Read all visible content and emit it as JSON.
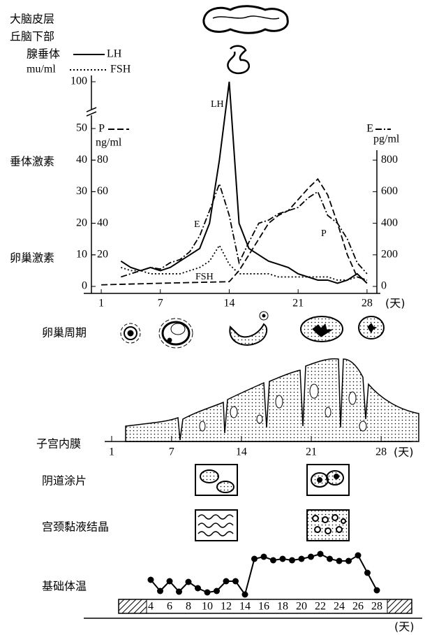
{
  "header": {
    "cortex": "大脑皮层",
    "hypothalamus": "丘脑下部",
    "pituitary": "腺垂体"
  },
  "chart_data": [
    {
      "type": "line",
      "y_axis_titles": [
        "垂体激素",
        "卵巢激素"
      ],
      "ylabel": "mu/ml",
      "y2label": "pg/ml",
      "y3label": "ng/ml",
      "x_unit": "(天)",
      "xlim": [
        0,
        29
      ],
      "xticks": [
        1,
        7,
        14,
        21,
        28
      ],
      "ylim": [
        0,
        100
      ],
      "y_break": [
        50,
        100
      ],
      "yticks": [
        0,
        10,
        20,
        30,
        40,
        50,
        100
      ],
      "y2lim": [
        0,
        1000
      ],
      "y2ticks": [
        0,
        200,
        400,
        600,
        800
      ],
      "y3lim": [
        0,
        100
      ],
      "y3ticks": [
        20,
        40,
        60,
        80
      ],
      "series": [
        {
          "name": "LH",
          "curve_label": "LH",
          "dash": "solid",
          "axis": "y",
          "color": "#000000",
          "x": [
            3,
            4,
            5,
            6,
            7,
            8,
            9,
            10,
            11,
            12,
            13,
            14,
            15,
            16,
            17,
            18,
            19,
            20,
            21,
            22,
            23,
            24,
            25,
            26,
            27,
            28
          ],
          "values": [
            8,
            6,
            5,
            6,
            5,
            6,
            8,
            10,
            12,
            20,
            40,
            100,
            20,
            12,
            10,
            8,
            7,
            6,
            4,
            3,
            2,
            2,
            1,
            2,
            4,
            1
          ]
        },
        {
          "name": "FSH",
          "curve_label": "FSH",
          "dash": "dotted",
          "axis": "y",
          "color": "#000000",
          "x": [
            3,
            4,
            5,
            6,
            7,
            8,
            9,
            10,
            11,
            12,
            13,
            14,
            15,
            16,
            17,
            18,
            19,
            20,
            21,
            22,
            23,
            24,
            25,
            26,
            27,
            28
          ],
          "values": [
            6,
            5,
            5,
            4,
            4,
            4,
            4,
            5,
            6,
            8,
            13,
            7,
            4,
            4,
            4,
            4,
            3,
            3,
            3,
            3,
            3,
            3,
            2,
            2,
            3,
            2
          ]
        },
        {
          "name": "E",
          "curve_label": "E",
          "dash": "dashdot",
          "axis": "y2",
          "color": "#000000",
          "x": [
            3,
            4,
            5,
            6,
            7,
            8,
            9,
            10,
            11,
            12,
            13,
            14,
            15,
            16,
            17,
            18,
            19,
            20,
            21,
            22,
            23,
            24,
            25,
            26,
            27,
            28
          ],
          "values": [
            60,
            80,
            100,
            120,
            110,
            150,
            170,
            220,
            320,
            480,
            650,
            450,
            150,
            280,
            400,
            420,
            460,
            480,
            500,
            560,
            600,
            450,
            400,
            300,
            150,
            80
          ]
        },
        {
          "name": "P",
          "curve_label": "P",
          "dash": "dashed",
          "axis": "y3",
          "color": "#000000",
          "x": [
            1,
            7,
            14,
            15,
            16,
            17,
            18,
            19,
            20,
            21,
            22,
            23,
            24,
            25,
            26,
            27,
            28
          ],
          "values": [
            1,
            2,
            3,
            10,
            20,
            30,
            40,
            45,
            48,
            55,
            62,
            68,
            58,
            40,
            20,
            6,
            4
          ]
        }
      ]
    },
    {
      "type": "line",
      "title": "基础体温",
      "color": "#000000",
      "x_unit": "(天)",
      "xlim": [
        0,
        30
      ],
      "xticks": [
        4,
        6,
        8,
        10,
        12,
        14,
        16,
        18,
        20,
        22,
        24,
        26,
        28
      ],
      "ylim": [
        0,
        8
      ],
      "x": [
        4,
        5,
        6,
        7,
        8,
        9,
        10,
        11,
        12,
        13,
        14,
        15,
        16,
        17,
        18,
        19,
        20,
        21,
        22,
        23,
        24,
        25,
        26,
        27,
        28
      ],
      "values": [
        3.0,
        1.4,
        2.8,
        1.3,
        2.7,
        1.8,
        1.2,
        1.4,
        2.8,
        2.8,
        0.9,
        6.0,
        6.3,
        5.8,
        6.0,
        5.8,
        6.0,
        6.3,
        6.7,
        6.0,
        5.7,
        5.7,
        6.5,
        4.0,
        1.5
      ]
    }
  ],
  "ovary": {
    "label": "卵巢周期"
  },
  "endometrium": {
    "label": "子宫内膜",
    "xticks": [
      1,
      7,
      14,
      21,
      28
    ],
    "x_unit": "(天)"
  },
  "vaginal_smear": {
    "label": "阴道涂片"
  },
  "cervical_mucus": {
    "label": "宫颈黏液结晶"
  }
}
